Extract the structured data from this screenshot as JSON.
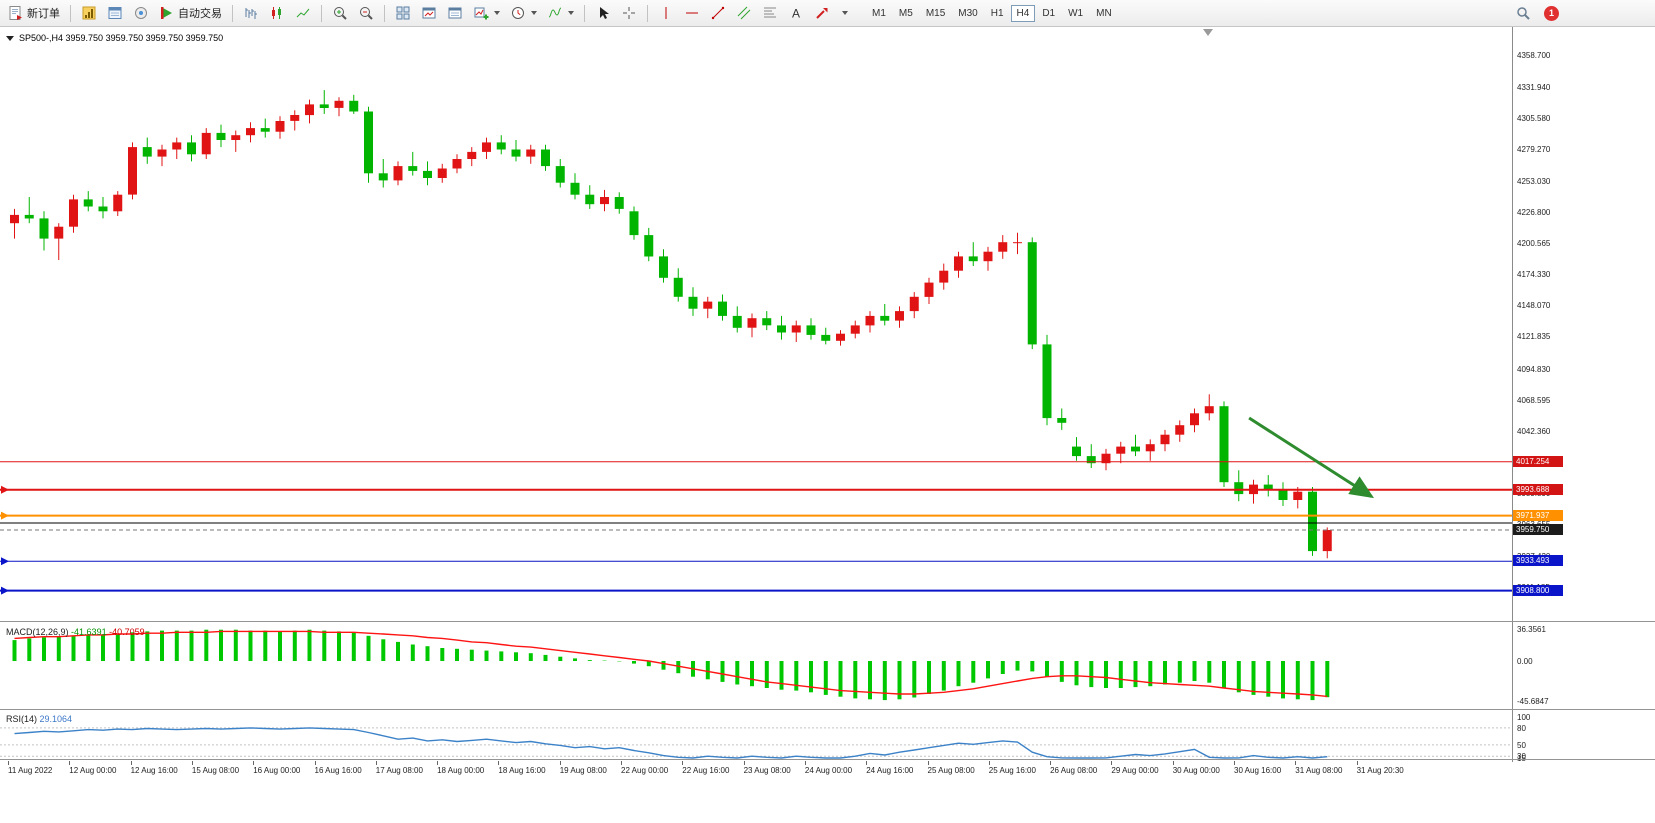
{
  "toolbar": {
    "new_order_label": "新订单",
    "algo_trading_label": "自动交易",
    "text_tool_glyph": "A",
    "timeframes": [
      "M1",
      "M5",
      "M15",
      "M30",
      "H1",
      "H4",
      "D1",
      "W1",
      "MN"
    ],
    "active_timeframe": "H4",
    "notification_count": "1"
  },
  "chart": {
    "title": "SP500-,H4 3959.750 3959.750 3959.750 3959.750"
  },
  "chart_data": [
    {
      "type": "candlestick",
      "symbol": "SP500-",
      "timeframe": "H4",
      "up_color": "#e01414",
      "down_color": "#00b400",
      "ylim": [
        3883.2,
        4383.1
      ],
      "shift_marker_x": 1208,
      "y_axis_labels": [
        "4358.700",
        "4331.940",
        "4305.580",
        "4279.270",
        "4253.030",
        "4226.800",
        "4200.565",
        "4174.330",
        "4148.070",
        "4121.835",
        "4094.830",
        "4068.595",
        "4042.360",
        "4016.125",
        "3989.890",
        "3963.655",
        "3937.420",
        "3911.185"
      ],
      "x_labels": [
        "11 Aug 2022",
        "12 Aug 00:00",
        "12 Aug 16:00",
        "15 Aug 08:00",
        "16 Aug 00:00",
        "16 Aug 16:00",
        "17 Aug 08:00",
        "18 Aug 00:00",
        "18 Aug 16:00",
        "19 Aug 08:00",
        "22 Aug 00:00",
        "22 Aug 16:00",
        "23 Aug 08:00",
        "24 Aug 00:00",
        "24 Aug 16:00",
        "25 Aug 08:00",
        "25 Aug 16:00",
        "26 Aug 08:00",
        "29 Aug 00:00",
        "30 Aug 00:00",
        "30 Aug 16:00",
        "31 Aug 08:00",
        "31 Aug 20:30"
      ],
      "candles": [
        [
          4218,
          4230,
          4205,
          4225
        ],
        [
          4225,
          4240,
          4218,
          4222
        ],
        [
          4222,
          4228,
          4195,
          4205
        ],
        [
          4205,
          4218,
          4187,
          4215
        ],
        [
          4215,
          4242,
          4210,
          4238
        ],
        [
          4238,
          4245,
          4228,
          4232
        ],
        [
          4232,
          4240,
          4222,
          4228
        ],
        [
          4228,
          4245,
          4224,
          4242
        ],
        [
          4242,
          4286,
          4238,
          4282
        ],
        [
          4282,
          4290,
          4268,
          4274
        ],
        [
          4274,
          4284,
          4266,
          4280
        ],
        [
          4280,
          4290,
          4272,
          4286
        ],
        [
          4286,
          4292,
          4270,
          4276
        ],
        [
          4276,
          4298,
          4272,
          4294
        ],
        [
          4294,
          4301,
          4282,
          4288
        ],
        [
          4288,
          4296,
          4278,
          4292
        ],
        [
          4292,
          4303,
          4286,
          4298
        ],
        [
          4298,
          4306,
          4290,
          4295
        ],
        [
          4295,
          4308,
          4289,
          4304
        ],
        [
          4304,
          4313,
          4296,
          4309
        ],
        [
          4309,
          4322,
          4302,
          4318
        ],
        [
          4318,
          4330,
          4310,
          4315
        ],
        [
          4315,
          4324,
          4308,
          4321
        ],
        [
          4321,
          4326,
          4310,
          4312
        ],
        [
          4312,
          4316,
          4252,
          4260
        ],
        [
          4260,
          4272,
          4248,
          4254
        ],
        [
          4254,
          4270,
          4250,
          4266
        ],
        [
          4266,
          4278,
          4258,
          4262
        ],
        [
          4262,
          4270,
          4250,
          4256
        ],
        [
          4256,
          4268,
          4252,
          4264
        ],
        [
          4264,
          4276,
          4260,
          4272
        ],
        [
          4272,
          4282,
          4266,
          4278
        ],
        [
          4278,
          4290,
          4272,
          4286
        ],
        [
          4286,
          4292,
          4276,
          4280
        ],
        [
          4280,
          4288,
          4270,
          4274
        ],
        [
          4274,
          4284,
          4268,
          4280
        ],
        [
          4280,
          4284,
          4262,
          4266
        ],
        [
          4266,
          4272,
          4248,
          4252
        ],
        [
          4252,
          4260,
          4238,
          4242
        ],
        [
          4242,
          4250,
          4230,
          4234
        ],
        [
          4234,
          4246,
          4228,
          4240
        ],
        [
          4240,
          4244,
          4226,
          4230
        ],
        [
          4228,
          4232,
          4204,
          4208
        ],
        [
          4208,
          4214,
          4186,
          4190
        ],
        [
          4190,
          4196,
          4168,
          4172
        ],
        [
          4172,
          4180,
          4152,
          4156
        ],
        [
          4156,
          4164,
          4140,
          4146
        ],
        [
          4146,
          4156,
          4138,
          4152
        ],
        [
          4152,
          4158,
          4136,
          4140
        ],
        [
          4140,
          4148,
          4126,
          4130
        ],
        [
          4130,
          4142,
          4122,
          4138
        ],
        [
          4138,
          4144,
          4128,
          4132
        ],
        [
          4132,
          4140,
          4120,
          4126
        ],
        [
          4126,
          4136,
          4118,
          4132
        ],
        [
          4132,
          4138,
          4120,
          4124
        ],
        [
          4124,
          4130,
          4116,
          4119
        ],
        [
          4119,
          4128,
          4115,
          4125
        ],
        [
          4125,
          4136,
          4121,
          4132
        ],
        [
          4132,
          4144,
          4126,
          4140
        ],
        [
          4140,
          4150,
          4132,
          4136
        ],
        [
          4136,
          4148,
          4130,
          4144
        ],
        [
          4144,
          4160,
          4138,
          4156
        ],
        [
          4156,
          4172,
          4150,
          4168
        ],
        [
          4168,
          4184,
          4162,
          4178
        ],
        [
          4178,
          4194,
          4172,
          4190
        ],
        [
          4190,
          4202,
          4182,
          4186
        ],
        [
          4186,
          4198,
          4178,
          4194
        ],
        [
          4194,
          4208,
          4188,
          4202
        ],
        [
          4202,
          4210,
          4192,
          4202
        ],
        [
          4202,
          4206,
          4112,
          4116
        ],
        [
          4116,
          4124,
          4048,
          4054
        ],
        [
          4054,
          4062,
          4044,
          4050
        ],
        [
          4030,
          4038,
          4018,
          4022
        ],
        [
          4022,
          4032,
          4012,
          4016
        ],
        [
          4016,
          4028,
          4010,
          4024
        ],
        [
          4024,
          4034,
          4016,
          4030
        ],
        [
          4030,
          4040,
          4022,
          4026
        ],
        [
          4026,
          4036,
          4018,
          4032
        ],
        [
          4032,
          4044,
          4026,
          4040
        ],
        [
          4040,
          4052,
          4034,
          4048
        ],
        [
          4048,
          4062,
          4042,
          4058
        ],
        [
          4058,
          4074,
          4052,
          4064
        ],
        [
          4064,
          4068,
          3996,
          4000
        ],
        [
          4000,
          4010,
          3984,
          3990
        ],
        [
          3990,
          4002,
          3982,
          3998
        ],
        [
          3998,
          4006,
          3988,
          3994
        ],
        [
          3994,
          4000,
          3980,
          3985
        ],
        [
          3985,
          3996,
          3978,
          3992
        ],
        [
          3992,
          3996,
          3938,
          3942
        ],
        [
          3942,
          3962,
          3936,
          3959.75
        ]
      ],
      "hlines": [
        {
          "price": 4017.254,
          "color": "#e01414",
          "width": 1,
          "badge": "4017.254",
          "badge_bg": "#d31414"
        },
        {
          "price": 3993.688,
          "color": "#e01414",
          "width": 2,
          "badge": "3993.688",
          "badge_bg": "#d31414",
          "left_marker": true
        },
        {
          "price": 3971.937,
          "color": "#ff9000",
          "width": 2,
          "badge": "3971.937",
          "badge_bg": "#ff9000",
          "left_marker": true
        },
        {
          "price": 3965.65,
          "color": "#000000",
          "width": 1
        },
        {
          "price": 3933.493,
          "color": "#0a14c8",
          "width": 1,
          "badge": "3933.493",
          "badge_bg": "#0a14c8",
          "left_marker": true
        },
        {
          "price": 3908.8,
          "color": "#0a14c8",
          "width": 2,
          "badge": "3908.800",
          "badge_bg": "#0a14c8",
          "left_marker": true
        }
      ],
      "current_price": {
        "value": 3959.75,
        "badge": "3959.750",
        "badge_bg": "#1c1c1c"
      },
      "trend_arrow": {
        "from": {
          "index": 83.7,
          "price": 4054
        },
        "to": {
          "index": 92,
          "price": 3988
        },
        "color": "#2e8b2e"
      }
    },
    {
      "type": "macd",
      "label": "MACD(12,26,9)",
      "value1": "-41.6391",
      "value2": "-40.7059",
      "y_labels": [
        "36.3561",
        "0.00",
        "-45.6847"
      ],
      "ylim": [
        -55.2,
        43.7
      ],
      "histogram_color": "#00c800",
      "signal_color": "#ff1414",
      "histogram": [
        24,
        26,
        27,
        28,
        29,
        30,
        30,
        31,
        33,
        34,
        35,
        35,
        35,
        36,
        36,
        36,
        35,
        35,
        34,
        35,
        36,
        35,
        34,
        33,
        29,
        25,
        22,
        19,
        17,
        15,
        14,
        13,
        12,
        11,
        10,
        9,
        7,
        5,
        3,
        1,
        0.5,
        -0.5,
        -3,
        -6,
        -10,
        -14,
        -18,
        -21,
        -24,
        -27,
        -29,
        -31,
        -33,
        -34,
        -36,
        -39,
        -41,
        -43,
        -44,
        -45,
        -44,
        -42,
        -38,
        -34,
        -29,
        -25,
        -20,
        -15,
        -11,
        -12,
        -18,
        -24,
        -28,
        -30,
        -31,
        -31,
        -30,
        -29,
        -27,
        -25,
        -23,
        -25,
        -31,
        -36,
        -39,
        -41,
        -43,
        -44,
        -45,
        -41.64
      ],
      "signal": [
        26,
        27,
        28,
        28,
        29,
        30,
        30,
        31,
        31,
        32,
        32,
        33,
        33,
        33,
        34,
        34,
        34,
        34,
        34,
        34,
        34,
        33,
        33,
        33,
        32,
        31,
        30,
        29,
        27,
        26,
        24,
        22,
        21,
        19,
        17,
        16,
        14,
        12,
        10,
        8,
        6,
        4,
        2,
        0,
        -3,
        -6,
        -9,
        -12,
        -15,
        -18,
        -21,
        -24,
        -26,
        -28,
        -30,
        -32,
        -34,
        -35,
        -36,
        -37,
        -38,
        -38,
        -37,
        -36,
        -34,
        -32,
        -29,
        -26,
        -23,
        -20,
        -18,
        -17,
        -17,
        -18,
        -19,
        -21,
        -23,
        -25,
        -26,
        -27,
        -28,
        -29,
        -31,
        -33,
        -35,
        -36,
        -37,
        -38,
        -39,
        -40.71
      ]
    },
    {
      "type": "rsi",
      "label": "RSI(14)",
      "value": "29.1064",
      "y_labels": [
        "100",
        "80",
        "50",
        "30",
        "15"
      ],
      "levels": [
        80,
        50,
        30
      ],
      "ylim": [
        25,
        110
      ],
      "line_color": "#3c82c8",
      "values": [
        70,
        72,
        74,
        73,
        75,
        77,
        76,
        78,
        77,
        79,
        78,
        77,
        78,
        79,
        78,
        79,
        80,
        79,
        78,
        79,
        80,
        79,
        78,
        77,
        72,
        66,
        60,
        62,
        57,
        59,
        56,
        58,
        60,
        57,
        54,
        56,
        52,
        49,
        45,
        47,
        43,
        45,
        40,
        36,
        31,
        28,
        26,
        30,
        28,
        26,
        30,
        28,
        26,
        30,
        28,
        26,
        25,
        30,
        35,
        32,
        37,
        41,
        45,
        49,
        53,
        51,
        54,
        57,
        55,
        37,
        29,
        27,
        26,
        24,
        27,
        30,
        33,
        31,
        34,
        38,
        42,
        28,
        24,
        27,
        31,
        28,
        25,
        29,
        21,
        29.11
      ]
    }
  ]
}
